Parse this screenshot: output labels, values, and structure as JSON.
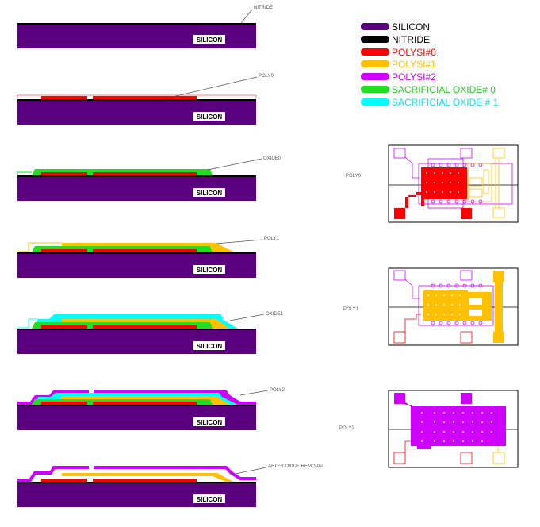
{
  "legend": [
    {
      "label": "SILICON",
      "color": "#5a007f"
    },
    {
      "label": "NITRIDE",
      "color": "#000000"
    },
    {
      "label": "POLYSI#0",
      "color": "#ff0000"
    },
    {
      "label": "POLYSI#1",
      "color": "#ffc000"
    },
    {
      "label": "POLYSI#2",
      "color": "#d000ff"
    },
    {
      "label": "SACRIFICIAL OXIDE# 0",
      "color": "#22dd22"
    },
    {
      "label": "SACRIFICIAL OXIDE # 1",
      "color": "#00ffff"
    }
  ],
  "steps": [
    {
      "callout": "NITRIDE",
      "substrate_label": "SILICON"
    },
    {
      "callout": "POLY0",
      "substrate_label": "SILICON"
    },
    {
      "callout": "OXIDE0",
      "substrate_label": "SILICON"
    },
    {
      "callout": "POLY1",
      "substrate_label": "SILICON"
    },
    {
      "callout": "OXIDE1",
      "substrate_label": "SILICON"
    },
    {
      "callout": "POLY2",
      "substrate_label": "SILICON"
    },
    {
      "callout": "AFTER OXIDE REMOVAL",
      "substrate_label": "SILICON"
    }
  ],
  "mask_views": [
    {
      "label": "POLY0"
    },
    {
      "label": "POLY1"
    },
    {
      "label": "POLY2"
    }
  ]
}
